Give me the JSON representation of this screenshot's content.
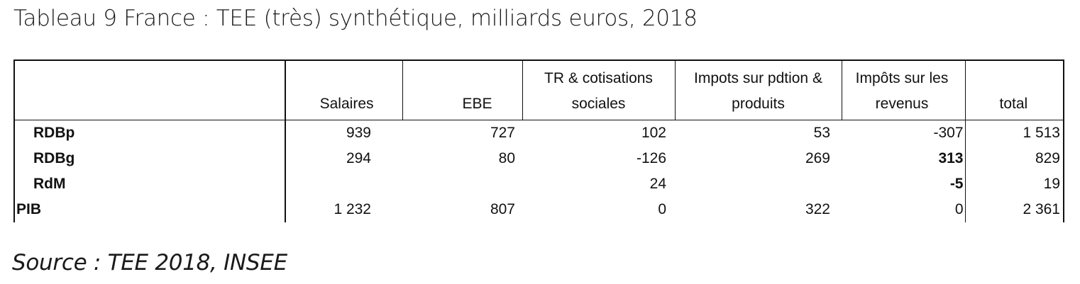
{
  "title": "Tableau 9 France : TEE (très) synthétique, milliards euros, 2018",
  "source": "Source : TEE 2018, INSEE",
  "table": {
    "headers": {
      "label": "",
      "salaires": "Salaires",
      "ebe": "EBE",
      "tr_line1": "TR & cotisations",
      "tr_line2": "sociales",
      "impots_line1": "Impots sur pdtion &",
      "impots_line2": "produits",
      "revenus_line1": "Impôts sur les",
      "revenus_line2": "revenus",
      "total": "total"
    },
    "rows": [
      {
        "label": "RDBp",
        "salaires": "939",
        "ebe": "727",
        "tr": "102",
        "impots": "53",
        "revenus": "-307",
        "total": "1 513"
      },
      {
        "label": "RDBg",
        "salaires": "294",
        "ebe": "80",
        "tr": "-126",
        "impots": "269",
        "revenus": "313",
        "total": "829"
      },
      {
        "label": "RdM",
        "salaires": "",
        "ebe": "",
        "tr": "24",
        "impots": "",
        "revenus": "-5",
        "total": "19"
      },
      {
        "label": "PIB",
        "salaires": "1 232",
        "ebe": "807",
        "tr": "0",
        "impots": "322",
        "revenus": "0",
        "total": "2 361"
      }
    ]
  }
}
